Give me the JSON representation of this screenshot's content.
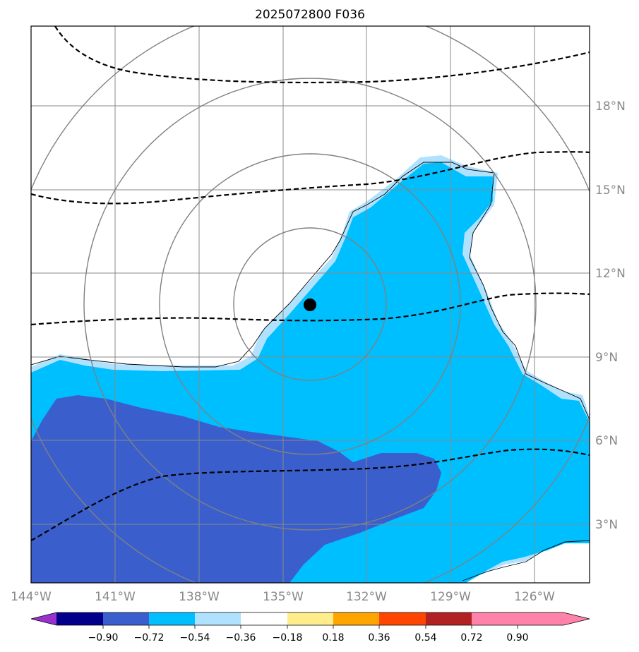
{
  "title": "2025072800 F036",
  "map": {
    "lon_range": [
      -144,
      -124
    ],
    "lat_range": [
      1,
      21
    ],
    "lat_labels": [
      "3°N",
      "6°N",
      "9°N",
      "12°N",
      "15°N",
      "18°N"
    ],
    "lon_labels": [
      "144°W",
      "141°W",
      "138°W",
      "135°W",
      "132°W",
      "129°W",
      "126°W"
    ],
    "storm_center": {
      "lon": -134,
      "lat": 10.9
    },
    "range_rings_deg": [
      2.7,
      5.4,
      8.1,
      10.8
    ],
    "colors": {
      "grid": "#888888",
      "ring": "#808080",
      "coast": "#000000",
      "center_marker": "#000000"
    }
  },
  "colorbar": {
    "ticks": [
      "−0.90",
      "−0.72",
      "−0.54",
      "−0.36",
      "−0.18",
      "0.18",
      "0.36",
      "0.54",
      "0.72",
      "0.90"
    ],
    "colors": [
      "#9932cc",
      "#00008b",
      "#3a5fcd",
      "#00bfff",
      "#b0e2ff",
      "#ffffff",
      "#ffec8b",
      "#ffa500",
      "#ff4500",
      "#b22222",
      "#ff82ab"
    ]
  }
}
